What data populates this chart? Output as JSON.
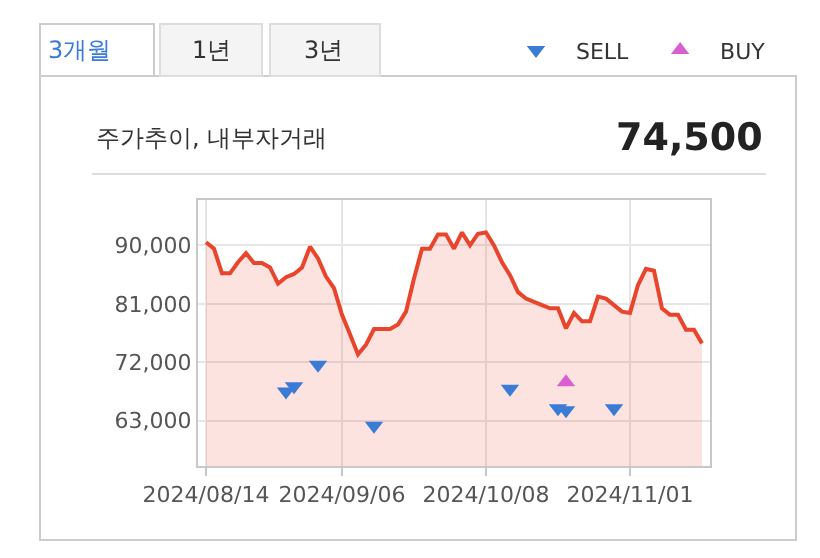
{
  "chart_data": {
    "type": "area",
    "title": "주가추이, 내부자거래",
    "subtitle": "74,500",
    "annotations": [
      "3개월",
      "1년",
      "3년"
    ],
    "categories": [
      "2024/08/14",
      null,
      null,
      null,
      null,
      null,
      null,
      null,
      null,
      null,
      null,
      null,
      null,
      null,
      null,
      null,
      null,
      "2024/09/06",
      null,
      null,
      null,
      null,
      null,
      null,
      null,
      null,
      null,
      null,
      null,
      null,
      null,
      null,
      null,
      null,
      null,
      "2024/10/08",
      null,
      null,
      null,
      null,
      null,
      null,
      null,
      null,
      null,
      null,
      null,
      null,
      null,
      null,
      null,
      null,
      null,
      "2024/11/01",
      null,
      null,
      null,
      null,
      null,
      null,
      null,
      null,
      null
    ],
    "series": [
      {
        "color": "#e8452c",
        "values": [
          90500,
          89500,
          85700,
          85700,
          87400,
          88800,
          87300,
          87300,
          86600,
          84100,
          85100,
          85600,
          86600,
          89800,
          88000,
          85200,
          83400,
          79300,
          76300,
          73200,
          74700,
          77100,
          77100,
          77100,
          77800,
          79800,
          84900,
          89500,
          89500,
          91700,
          91700,
          89500,
          92000,
          90000,
          91800,
          92000,
          90000,
          87400,
          85400,
          82800,
          81800,
          81300,
          80800,
          80300,
          80300,
          77200,
          79600,
          78300,
          78300,
          82100,
          81800,
          80800,
          79800,
          79600,
          83900,
          86400,
          86100,
          80300,
          79300,
          79300,
          77000,
          77000,
          74900
        ]
      },
      {
        "type": "scatter",
        "name": "SELL",
        "color": "#3a7bd5",
        "marker": "triangle-down",
        "values": [
          null,
          null,
          null,
          null,
          null,
          null,
          null,
          null,
          null,
          null,
          67500,
          68300,
          null,
          null,
          71600,
          null,
          null,
          null,
          null,
          null,
          null,
          62200,
          null,
          null,
          null,
          null,
          null,
          null,
          null,
          null,
          null,
          null,
          null,
          null,
          null,
          null,
          null,
          null,
          67900,
          null,
          null,
          null,
          null,
          null,
          64900,
          64600,
          null,
          null,
          null,
          null,
          null,
          64900,
          null,
          null,
          null,
          null,
          null,
          null,
          null,
          null,
          null,
          null,
          null
        ]
      },
      {
        "type": "scatter",
        "name": "BUY",
        "color": "#d95fd1",
        "marker": "triangle-up",
        "values": [
          null,
          null,
          null,
          null,
          null,
          null,
          null,
          null,
          null,
          null,
          null,
          null,
          null,
          null,
          null,
          null,
          null,
          null,
          null,
          null,
          null,
          null,
          null,
          null,
          null,
          null,
          null,
          null,
          null,
          null,
          null,
          null,
          null,
          null,
          null,
          null,
          null,
          null,
          null,
          null,
          null,
          null,
          null,
          null,
          null,
          68900,
          null,
          null,
          null,
          null,
          null,
          null,
          null,
          null,
          null,
          null,
          null,
          null,
          null,
          null,
          null,
          null,
          null
        ]
      }
    ],
    "ylim": [
      56000,
      97000
    ],
    "yticks": [
      {
        "value": 63000,
        "label": "63,000"
      },
      {
        "value": 72000,
        "label": "72,000"
      },
      {
        "value": 81000,
        "label": "81,000"
      },
      {
        "value": 90000,
        "label": "90,000"
      }
    ],
    "grid": true,
    "legend": "top right"
  }
}
